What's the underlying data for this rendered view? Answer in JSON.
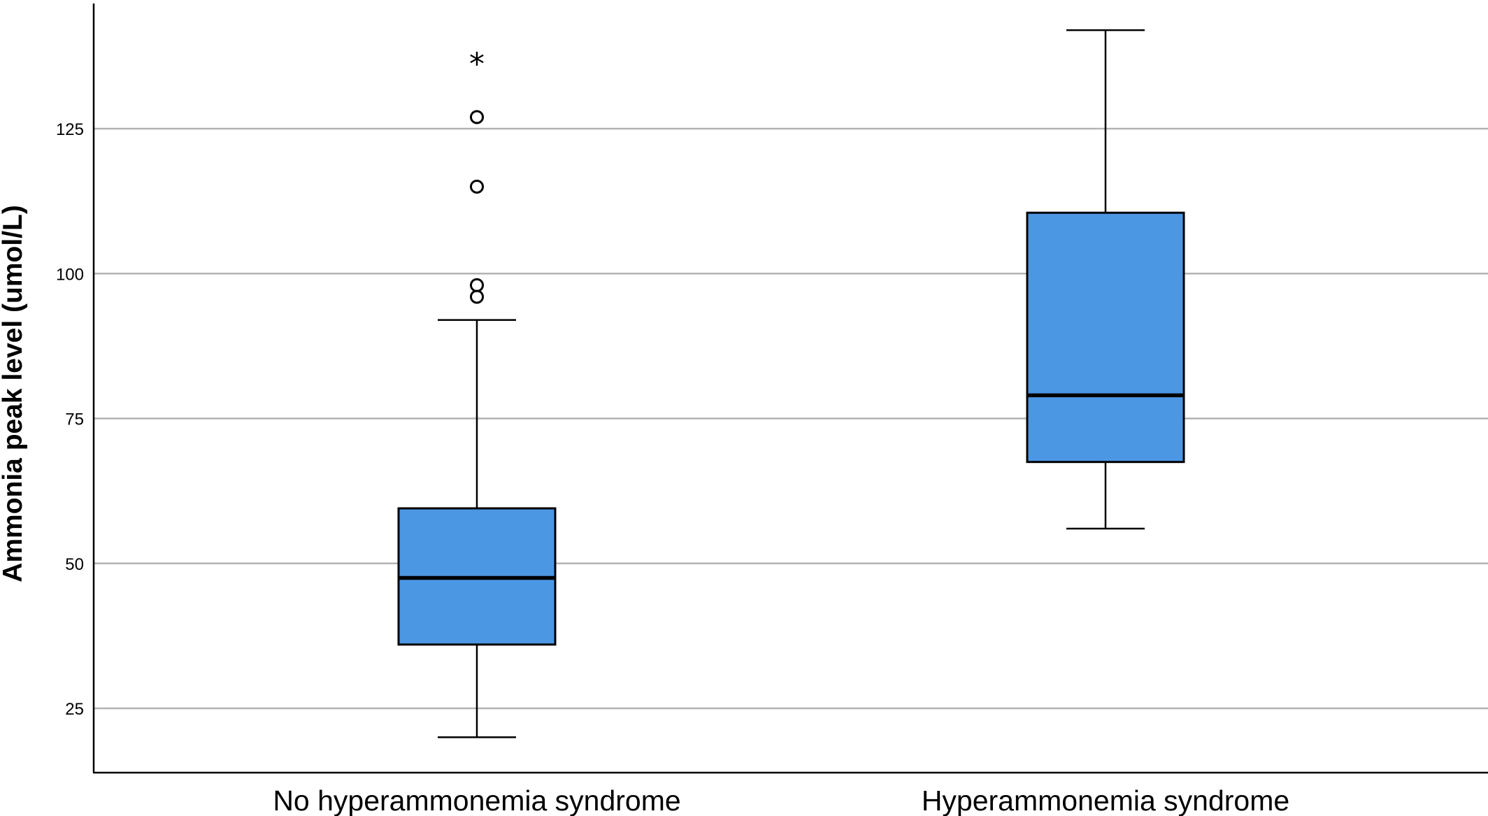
{
  "chart_data": {
    "type": "boxplot",
    "ylabel": "Ammonia peak level (umol/L)",
    "xlabel": "",
    "ylim": [
      13.9,
      146.6
    ],
    "yticks": [
      25,
      50,
      75,
      100,
      125
    ],
    "grid": "horizontal",
    "box_color": "#4c97e4",
    "categories": [
      "No hyperammonemia syndrome",
      "Hyperammonemia syndrome"
    ],
    "boxes": [
      {
        "category": "No hyperammonemia syndrome",
        "min": 20,
        "q1": 36,
        "median": 47.5,
        "q3": 59.5,
        "max": 92,
        "outliers": [
          96,
          98,
          115,
          127
        ],
        "extremes": [
          137
        ]
      },
      {
        "category": "Hyperammonemia syndrome",
        "min": 56,
        "q1": 67.5,
        "median": 79,
        "q3": 110.5,
        "max": 142,
        "outliers": [],
        "extremes": []
      }
    ],
    "extreme_marker": "*"
  }
}
